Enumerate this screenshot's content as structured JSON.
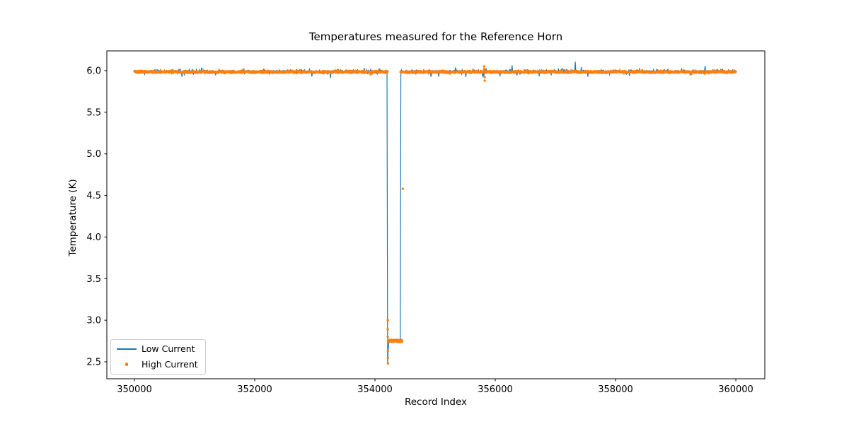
{
  "chart_data": {
    "type": "line+scatter",
    "title": "Temperatures measured for the Reference Horn",
    "xlabel": "Record Index",
    "ylabel": "Temperature (K)",
    "xlim": [
      349541,
      360482
    ],
    "ylim": [
      2.296,
      6.238
    ],
    "xticks": [
      350000,
      352000,
      354000,
      356000,
      358000,
      360000
    ],
    "yticks": [
      2.5,
      3.0,
      3.5,
      4.0,
      4.5,
      5.0,
      5.5,
      6.0
    ],
    "x_range": [
      350000,
      360000
    ],
    "grid": false,
    "legend": {
      "location": "lower-left",
      "entries": [
        "Low Current",
        "High Current"
      ]
    },
    "series": [
      {
        "name": "Low Current",
        "type": "line",
        "color": "#1f77b4",
        "baseline": 5.99,
        "noise_amplitude": 0.03,
        "dip": {
          "x_start": 354210,
          "x_end": 354425,
          "min_value": 2.48,
          "floor_value": 2.74
        },
        "spike": {
          "x": 357330,
          "value": 6.11
        }
      },
      {
        "name": "High Current",
        "type": "scatter",
        "color": "#ff7f0e",
        "marker_radius_px": 1.7,
        "baseline": 5.985,
        "noise_amplitude": 0.022,
        "baseline_gap": [
          354212,
          354418
        ],
        "dip": {
          "x_start": 354212,
          "x_end": 354455,
          "floor_value": 2.74,
          "descent_points": [
            [
              354211,
              3.0
            ],
            [
              354212,
              2.89
            ],
            [
              354213,
              2.8
            ],
            [
              354214,
              2.63
            ],
            [
              354215,
              2.55
            ],
            [
              354216,
              2.48
            ]
          ],
          "recovery_outlier": [
            354462,
            4.58
          ]
        },
        "blip": {
          "x_center": 355820,
          "points": [
            [
              355814,
              6.05
            ],
            [
              355817,
              6.02
            ],
            [
              355820,
              5.97
            ],
            [
              355823,
              5.92
            ],
            [
              355826,
              5.88
            ]
          ]
        }
      }
    ]
  }
}
